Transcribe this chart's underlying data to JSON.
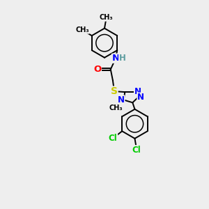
{
  "bg_color": "#eeeeee",
  "bond_color": "#000000",
  "atom_colors": {
    "N": "#0000ff",
    "O": "#ff0000",
    "S": "#cccc00",
    "Cl": "#00cc00",
    "H": "#5f9ea0",
    "C": "#000000"
  },
  "font_size": 8.5,
  "line_width": 1.4,
  "xlim": [
    0,
    10
  ],
  "ylim": [
    0,
    14
  ]
}
